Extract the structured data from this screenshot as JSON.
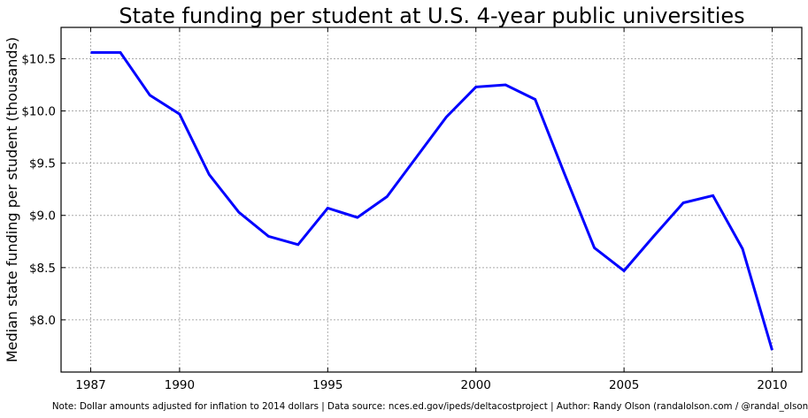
{
  "chart_data": {
    "type": "line",
    "title": "State funding per student at U.S. 4-year public universities",
    "xlabel": "",
    "ylabel": "Median state funding per student (thousands)",
    "xlim": [
      1986,
      2011
    ],
    "ylim": [
      7.5,
      10.8
    ],
    "xticks": [
      1987,
      1990,
      1995,
      2000,
      2005,
      2010
    ],
    "xtick_labels": [
      "1987",
      "1990",
      "1995",
      "2000",
      "2005",
      "2010"
    ],
    "yticks": [
      8.0,
      8.5,
      9.0,
      9.5,
      10.0,
      10.5
    ],
    "ytick_labels": [
      "$8.0",
      "$8.5",
      "$9.0",
      "$9.5",
      "$10.0",
      "$10.5"
    ],
    "grid": true,
    "line_color": "#0000ff",
    "x": [
      1987,
      1988,
      1989,
      1990,
      1991,
      1992,
      1993,
      1994,
      1995,
      1996,
      1997,
      1998,
      1999,
      2000,
      2001,
      2002,
      2003,
      2004,
      2005,
      2006,
      2007,
      2008,
      2009,
      2010
    ],
    "y": [
      10.56,
      10.56,
      10.15,
      9.97,
      9.39,
      9.03,
      8.8,
      8.72,
      9.07,
      8.98,
      9.18,
      9.56,
      9.94,
      10.23,
      10.25,
      10.11,
      9.39,
      8.69,
      8.47,
      8.8,
      9.12,
      9.19,
      8.68,
      7.71
    ]
  },
  "footnote": "Note: Dollar amounts adjusted for inflation to 2014 dollars | Data source: nces.ed.gov/ipeds/deltacostproject | Author: Randy Olson (randalolson.com / @randal_olson)"
}
